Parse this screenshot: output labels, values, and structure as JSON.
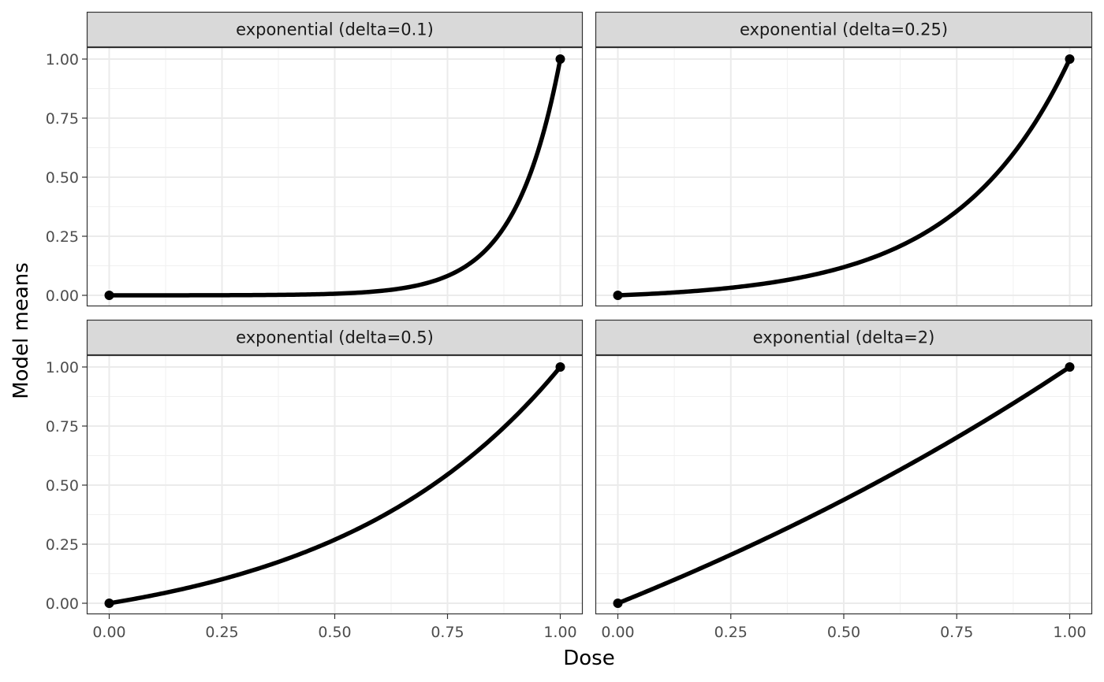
{
  "chart_data": {
    "type": "line",
    "xlabel": "Dose",
    "ylabel": "Model means",
    "xlim": [
      0,
      1
    ],
    "ylim": [
      0,
      1
    ],
    "x_ticks": [
      "0.00",
      "0.25",
      "0.50",
      "0.75",
      "1.00"
    ],
    "y_ticks": [
      "0.00",
      "0.25",
      "0.50",
      "0.75",
      "1.00"
    ],
    "grid": true,
    "line_color": "#000000",
    "panels": [
      {
        "title": "exponential (delta=0.1)",
        "delta": 0.1,
        "points": [
          {
            "x": 0,
            "y": 0
          },
          {
            "x": 1,
            "y": 1
          }
        ],
        "curve": {
          "x": [
            0,
            0.1,
            0.2,
            0.3,
            0.4,
            0.5,
            0.6,
            0.7,
            0.8,
            0.85,
            0.9,
            0.95,
            1.0
          ],
          "y": [
            0,
            0,
            0,
            0,
            0.001,
            0.005,
            0.018,
            0.05,
            0.135,
            0.223,
            0.368,
            0.607,
            1.0
          ]
        }
      },
      {
        "title": "exponential (delta=0.25)",
        "delta": 0.25,
        "points": [
          {
            "x": 0,
            "y": 0
          },
          {
            "x": 1,
            "y": 1
          }
        ],
        "curve": {
          "x": [
            0,
            0.1,
            0.2,
            0.3,
            0.4,
            0.5,
            0.6,
            0.7,
            0.8,
            0.9,
            1.0
          ],
          "y": [
            0,
            0.009,
            0.022,
            0.041,
            0.069,
            0.117,
            0.191,
            0.307,
            0.448,
            0.667,
            1.0
          ]
        }
      },
      {
        "title": "exponential (delta=0.5)",
        "delta": 0.5,
        "points": [
          {
            "x": 0,
            "y": 0
          },
          {
            "x": 1,
            "y": 1
          }
        ],
        "curve": {
          "x": [
            0,
            0.1,
            0.2,
            0.3,
            0.4,
            0.5,
            0.6,
            0.7,
            0.8,
            0.9,
            1.0
          ],
          "y": [
            0,
            0.035,
            0.078,
            0.128,
            0.191,
            0.269,
            0.366,
            0.485,
            0.63,
            0.801,
            1.0
          ]
        }
      },
      {
        "title": "exponential (delta=2)",
        "delta": 2,
        "points": [
          {
            "x": 0,
            "y": 0
          },
          {
            "x": 1,
            "y": 1
          }
        ],
        "curve": {
          "x": [
            0,
            0.1,
            0.2,
            0.3,
            0.4,
            0.5,
            0.6,
            0.7,
            0.8,
            0.9,
            1.0
          ],
          "y": [
            0,
            0.078,
            0.16,
            0.247,
            0.338,
            0.432,
            0.531,
            0.634,
            0.742,
            0.856,
            1.0
          ]
        }
      }
    ]
  }
}
